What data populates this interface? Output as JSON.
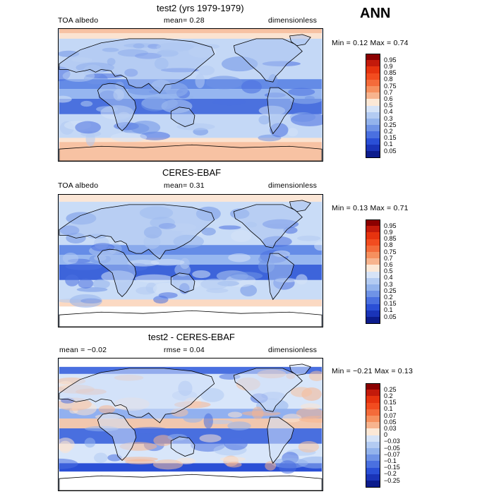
{
  "season": "ANN",
  "panels": [
    {
      "title": "test2 (yrs 1979-1979)",
      "left": "TOA albedo",
      "middle": "mean=    0.28",
      "right": "dimensionless",
      "stats": "Min =    0.12 Max =    0.74",
      "variant": "test",
      "colorbar": {
        "labels": [
          "0.95",
          "0.9",
          "0.85",
          "0.8",
          "0.75",
          "0.7",
          "0.6",
          "0.5",
          "0.4",
          "0.3",
          "0.25",
          "0.2",
          "0.15",
          "0.1",
          "0.05"
        ],
        "colors": [
          "#8b0000",
          "#c31a0b",
          "#e6330f",
          "#f24c1f",
          "#f46b3a",
          "#f6905e",
          "#f7b48e",
          "#fce8d6",
          "#d6e3f7",
          "#b3cbf2",
          "#93b3ec",
          "#6f93e6",
          "#4a70e0",
          "#2a4fd6",
          "#1a34b8",
          "#0c1c8c"
        ]
      },
      "chart_data": {
        "type": "heatmap",
        "title": "test2 (yrs 1979-1979)",
        "variable": "TOA albedo",
        "units": "dimensionless",
        "mean": 0.28,
        "min": 0.12,
        "max": 0.74,
        "levels": [
          0.05,
          0.1,
          0.15,
          0.2,
          0.25,
          0.3,
          0.4,
          0.5,
          0.6,
          0.7,
          0.75,
          0.8,
          0.85,
          0.9,
          0.95
        ]
      }
    },
    {
      "title": "CERES-EBAF",
      "left": "TOA albedo",
      "middle": "mean=    0.31",
      "right": "dimensionless",
      "stats": "Min =    0.13 Max =    0.71",
      "variant": "obs",
      "colorbar": {
        "labels": [
          "0.95",
          "0.9",
          "0.85",
          "0.8",
          "0.75",
          "0.7",
          "0.6",
          "0.5",
          "0.4",
          "0.3",
          "0.25",
          "0.2",
          "0.15",
          "0.1",
          "0.05"
        ],
        "colors": [
          "#8b0000",
          "#c31a0b",
          "#e6330f",
          "#f24c1f",
          "#f46b3a",
          "#f6905e",
          "#f7b48e",
          "#fce8d6",
          "#d6e3f7",
          "#b3cbf2",
          "#93b3ec",
          "#6f93e6",
          "#4a70e0",
          "#2a4fd6",
          "#1a34b8",
          "#0c1c8c"
        ]
      },
      "chart_data": {
        "type": "heatmap",
        "title": "CERES-EBAF",
        "variable": "TOA albedo",
        "units": "dimensionless",
        "mean": 0.31,
        "min": 0.13,
        "max": 0.71,
        "levels": [
          0.05,
          0.1,
          0.15,
          0.2,
          0.25,
          0.3,
          0.4,
          0.5,
          0.6,
          0.7,
          0.75,
          0.8,
          0.85,
          0.9,
          0.95
        ]
      }
    },
    {
      "title": "test2 - CERES-EBAF",
      "left": "mean =   −0.02",
      "middle": "rmse =   0.04",
      "right": "dimensionless",
      "stats": "Min =   −0.21 Max =    0.13",
      "variant": "diff",
      "colorbar": {
        "labels": [
          "0.25",
          "0.2",
          "0.15",
          "0.1",
          "0.07",
          "0.05",
          "0.03",
          "0",
          "−0.03",
          "−0.05",
          "−0.07",
          "−0.1",
          "−0.15",
          "−0.2",
          "−0.25"
        ],
        "colors": [
          "#8b0000",
          "#c31a0b",
          "#e6330f",
          "#f24c1f",
          "#f46b3a",
          "#f6905e",
          "#f7b48e",
          "#fce8d6",
          "#d6e3f7",
          "#b3cbf2",
          "#93b3ec",
          "#6f93e6",
          "#4a70e0",
          "#2a4fd6",
          "#1a34b8",
          "#0c1c8c"
        ]
      },
      "chart_data": {
        "type": "heatmap",
        "title": "test2 - CERES-EBAF",
        "units": "dimensionless",
        "mean": -0.02,
        "rmse": 0.04,
        "min": -0.21,
        "max": 0.13,
        "levels": [
          -0.25,
          -0.2,
          -0.15,
          -0.1,
          -0.07,
          -0.05,
          -0.03,
          0,
          0.03,
          0.05,
          0.07,
          0.1,
          0.15,
          0.2,
          0.25
        ]
      }
    }
  ]
}
